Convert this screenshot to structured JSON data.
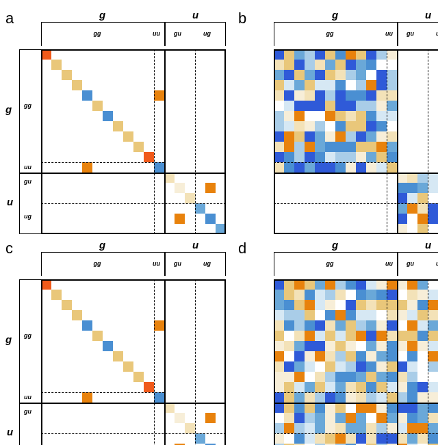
{
  "panels": {
    "a": {
      "letter": "a"
    },
    "b": {
      "letter": "b"
    },
    "c": {
      "letter": "c"
    },
    "d": {
      "letter": "d"
    }
  },
  "labels": {
    "g": "g",
    "u": "u",
    "gg": "gg",
    "uu": "uu",
    "gu": "gu",
    "ug": "ug"
  },
  "colors": {
    "orange": "#e8820c",
    "dark_orange": "#f05a1a",
    "sand": "#e9c77a",
    "light_sand": "#f3e2b8",
    "pale": "#f7eed8",
    "blue": "#4a8fd2",
    "mid_blue": "#6aa8d8",
    "light_blue": "#a9cde8",
    "pale_blue": "#d6e8f4",
    "royal": "#2f5ad8"
  }
}
